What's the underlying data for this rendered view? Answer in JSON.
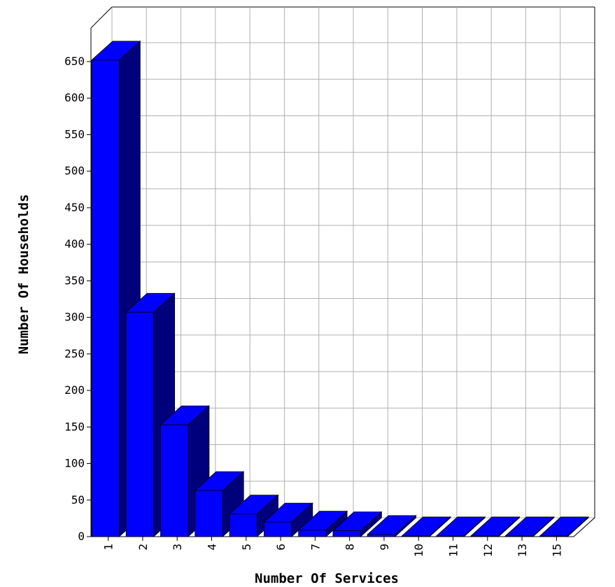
{
  "chart_data": {
    "type": "bar",
    "style": "3d",
    "title": "",
    "xlabel": "Number Of Services",
    "ylabel": "Number Of Households",
    "categories": [
      "1",
      "2",
      "3",
      "4",
      "5",
      "6",
      "7",
      "8",
      "9",
      "10",
      "11",
      "12",
      "13",
      "15"
    ],
    "values": [
      652,
      307,
      153,
      63,
      31,
      20,
      9,
      8,
      3,
      1,
      1,
      1,
      1,
      1
    ],
    "ylim": [
      0,
      650
    ],
    "yticks": [
      0,
      50,
      100,
      150,
      200,
      250,
      300,
      350,
      400,
      450,
      500,
      550,
      600,
      650
    ],
    "grid": true,
    "colors": {
      "bar_front": "#0000ff",
      "bar_top": "#0000ff",
      "bar_side": "#00007a",
      "grid": "#b0b0b0",
      "axis": "#000000"
    }
  }
}
